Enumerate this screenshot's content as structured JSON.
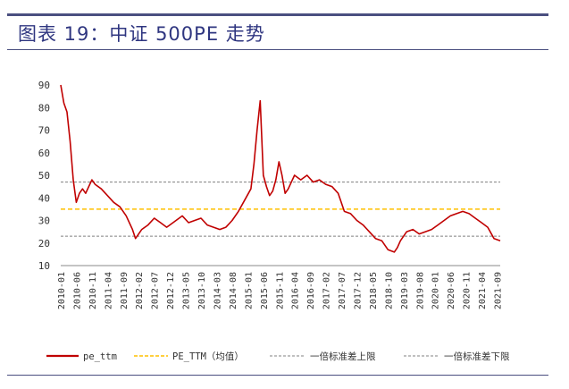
{
  "title": "图表 19：中证 500PE 走势",
  "colors": {
    "pe": "#c00000",
    "mean": "#ffc000",
    "band": "#808080",
    "rule": "#4a4f80",
    "title": "#2f3680"
  },
  "chart_data": {
    "type": "line",
    "ylim": [
      10,
      90
    ],
    "yticks": [
      10,
      20,
      30,
      40,
      50,
      60,
      70,
      80,
      90
    ],
    "x_start": "2010-01",
    "x_end": "2021-10",
    "xticks": [
      "2010-01",
      "2010-06",
      "2010-11",
      "2011-04",
      "2011-09",
      "2012-02",
      "2012-07",
      "2012-12",
      "2013-05",
      "2013-10",
      "2014-03",
      "2014-08",
      "2015-01",
      "2015-06",
      "2015-11",
      "2016-04",
      "2016-09",
      "2017-02",
      "2017-07",
      "2017-12",
      "2018-05",
      "2018-10",
      "2019-03",
      "2019-08",
      "2020-01",
      "2020-06",
      "2020-11",
      "2021-04",
      "2021-09"
    ],
    "grid": false,
    "legend": "bottom",
    "series": [
      {
        "name": "pe_ttm",
        "x": [
          "2010-01",
          "2010-02",
          "2010-03",
          "2010-04",
          "2010-05",
          "2010-06",
          "2010-07",
          "2010-08",
          "2010-09",
          "2010-10",
          "2010-11",
          "2010-12",
          "2011-02",
          "2011-04",
          "2011-06",
          "2011-08",
          "2011-10",
          "2011-12",
          "2012-01",
          "2012-03",
          "2012-05",
          "2012-07",
          "2012-09",
          "2012-11",
          "2012-12",
          "2013-02",
          "2013-04",
          "2013-06",
          "2013-08",
          "2013-10",
          "2013-12",
          "2014-02",
          "2014-04",
          "2014-06",
          "2014-08",
          "2014-10",
          "2014-12",
          "2015-02",
          "2015-03",
          "2015-04",
          "2015-05",
          "2015-06",
          "2015-07",
          "2015-08",
          "2015-09",
          "2015-10",
          "2015-11",
          "2015-12",
          "2016-01",
          "2016-02",
          "2016-03",
          "2016-04",
          "2016-06",
          "2016-08",
          "2016-10",
          "2016-12",
          "2017-02",
          "2017-04",
          "2017-06",
          "2017-08",
          "2017-10",
          "2017-12",
          "2018-02",
          "2018-04",
          "2018-06",
          "2018-08",
          "2018-10",
          "2018-12",
          "2019-01",
          "2019-02",
          "2019-04",
          "2019-06",
          "2019-08",
          "2019-10",
          "2019-12",
          "2020-02",
          "2020-04",
          "2020-06",
          "2020-08",
          "2020-10",
          "2020-12",
          "2021-02",
          "2021-04",
          "2021-06",
          "2021-08",
          "2021-10"
        ],
        "values": [
          90,
          82,
          78,
          65,
          48,
          38,
          42,
          44,
          42,
          45,
          48,
          46,
          44,
          41,
          38,
          36,
          32,
          26,
          22,
          26,
          28,
          31,
          29,
          27,
          28,
          30,
          32,
          29,
          30,
          31,
          28,
          27,
          26,
          27,
          30,
          34,
          39,
          44,
          55,
          70,
          83,
          50,
          45,
          41,
          43,
          48,
          56,
          50,
          42,
          44,
          47,
          50,
          48,
          50,
          47,
          48,
          46,
          45,
          42,
          34,
          33,
          30,
          28,
          25,
          22,
          21,
          17,
          16,
          18,
          21,
          25,
          26,
          24,
          25,
          26,
          28,
          30,
          32,
          33,
          34,
          33,
          31,
          29,
          27,
          22,
          21
        ]
      }
    ],
    "reference_lines": [
      {
        "name": "PE_TTM（均值）",
        "value": 35.0
      },
      {
        "name": "一倍标准差上限",
        "value": 47.0
      },
      {
        "name": "一倍标准差下限",
        "value": 23.0
      }
    ]
  }
}
